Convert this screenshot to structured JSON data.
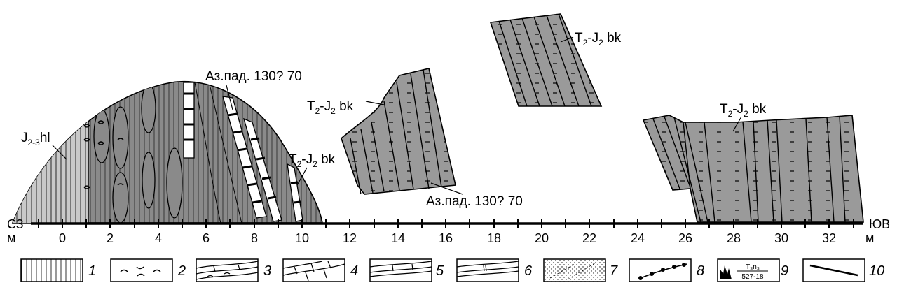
{
  "section": {
    "labels": {
      "hl_main": "J",
      "hl_sub": "2-3",
      "hl_tail": "hl",
      "az1": "Аз.пад. 130? 70",
      "az2": "Аз.пад. 130? 70",
      "bk_T": "T",
      "bk_sub1": "2",
      "bk_mid": "-J",
      "bk_sub2": "2",
      "bk_tail": " bk",
      "nw": "СЗ",
      "se": "ЮВ"
    },
    "axis": {
      "unit_left": "м",
      "unit_right": "м",
      "ticks": [
        "0",
        "2",
        "4",
        "6",
        "8",
        "10",
        "12",
        "14",
        "16",
        "18",
        "20",
        "22",
        "24",
        "26",
        "28",
        "30",
        "32"
      ]
    }
  },
  "legend": {
    "items": [
      {
        "num": "1",
        "pattern": "vertical-hatch"
      },
      {
        "num": "2",
        "pattern": "wavy-dashes"
      },
      {
        "num": "3",
        "pattern": "layered-wavy-bricks"
      },
      {
        "num": "4",
        "pattern": "limestone-bricks"
      },
      {
        "num": "5",
        "pattern": "layered-bands"
      },
      {
        "num": "6",
        "pattern": "layered-bands-2"
      },
      {
        "num": "7",
        "pattern": "dotted-sandstone"
      },
      {
        "num": "8",
        "pattern": "fault-line-with-dots"
      },
      {
        "num": "9",
        "pattern": "sample-symbol"
      },
      {
        "num": "10",
        "pattern": "line"
      }
    ],
    "sample_top": "T₃n₃",
    "sample_bottom": "527-18"
  }
}
